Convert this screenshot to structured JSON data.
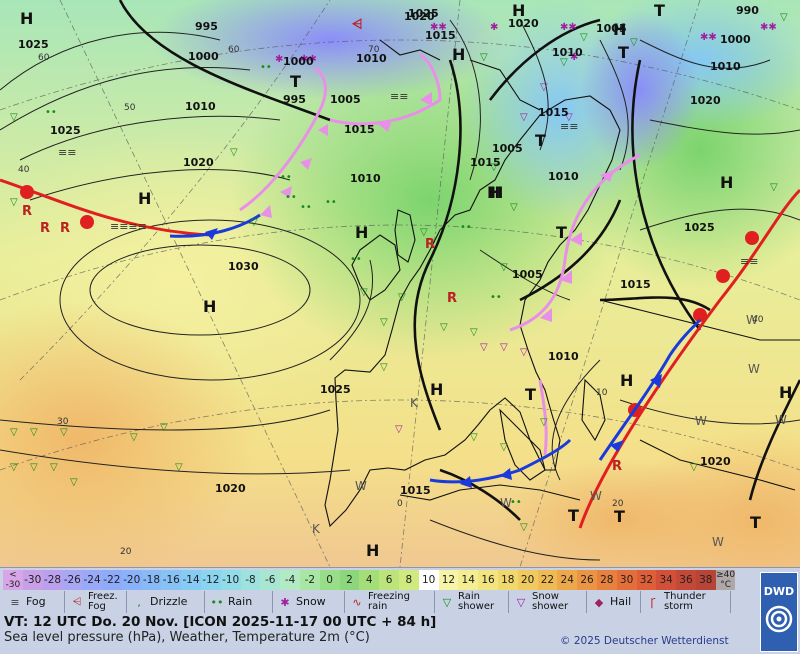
{
  "map": {
    "isobar_labels": [
      "1025",
      "995",
      "1000",
      "1010",
      "1020",
      "1025",
      "1030",
      "1020",
      "995",
      "1000",
      "1005",
      "1010",
      "1015",
      "1020",
      "1025",
      "1015",
      "1010",
      "1015",
      "1005",
      "1010",
      "1005",
      "1025",
      "1010",
      "1010",
      "1015",
      "1025",
      "1020",
      "1015",
      "1005",
      "990",
      "1000",
      "1015",
      "1010",
      "1020",
      "1020"
    ],
    "pressure_centers": [
      "H",
      "T",
      "H",
      "H",
      "H",
      "T",
      "H",
      "T",
      "H",
      "T",
      "H",
      "H",
      "T",
      "H",
      "H",
      "T",
      "H",
      "H",
      "T",
      "T",
      "H",
      "T",
      "H"
    ],
    "weather_codes": [
      "W",
      "W",
      "W",
      "K",
      "K",
      "W",
      "W",
      "W",
      "W",
      "W"
    ],
    "lat_labels": [
      "40",
      "30",
      "20",
      "50",
      "60",
      "60",
      "70",
      "0",
      "10",
      "20",
      "40"
    ]
  },
  "legend": {
    "temp_scale": [
      "<\n-30",
      "-30",
      "-28",
      "-26",
      "-24",
      "-22",
      "-20",
      "-18",
      "-16",
      "-14",
      "-12",
      "-10",
      "-8",
      "-6",
      "-4",
      "-2",
      "0",
      "2",
      "4",
      "6",
      "8",
      "10",
      "12",
      "14",
      "16",
      "18",
      "20",
      "22",
      "24",
      "26",
      "28",
      "30",
      "32",
      "34",
      "36",
      "38",
      "≥40\n°C"
    ],
    "temp_colors": [
      "#d7a6e8",
      "#c7a0e8",
      "#bba0f0",
      "#a9a6f4",
      "#9aa8f8",
      "#8eaaf8",
      "#8ab2fa",
      "#88baf8",
      "#86c2f6",
      "#86cbf4",
      "#8ad4f0",
      "#92dcea",
      "#9ee2e0",
      "#a8e6d2",
      "#b2eac4",
      "#a8e6a4",
      "#98de88",
      "#8cd67c",
      "#a4de78",
      "#bce47a",
      "#d0ea80",
      "#ffffff",
      "#f6f4a8",
      "#f4ee92",
      "#f2e47e",
      "#f0d86c",
      "#f0ca5e",
      "#eeba54",
      "#eca84a",
      "#ea9444",
      "#e8803e",
      "#e46e3a",
      "#de5e38",
      "#d25038",
      "#c44838",
      "#b84438",
      "#b0a8a8"
    ],
    "weather": [
      {
        "label": "Fog",
        "sym": "≡",
        "color": "#444"
      },
      {
        "label": "Freez.\nFog",
        "sym": "⩤",
        "color": "#b22"
      },
      {
        "label": "Drizzle",
        "sym": "‚",
        "color": "#1a8a1a"
      },
      {
        "label": "Rain",
        "sym": "••",
        "color": "#1a8a1a"
      },
      {
        "label": "Snow",
        "sym": "✱",
        "color": "#a020a0"
      },
      {
        "label": "Freezing\nrain",
        "sym": "∿",
        "color": "#b22"
      },
      {
        "label": "Rain\nshower",
        "sym": "▽",
        "color": "#1a8a1a"
      },
      {
        "label": "Snow\nshower",
        "sym": "▽",
        "color": "#a020a0"
      },
      {
        "label": "Hail",
        "sym": "◆",
        "color": "#a02060"
      },
      {
        "label": "Thunder\nstorm",
        "sym": "Ꞅ",
        "color": "#b22"
      }
    ],
    "valid_time": "VT: 12 UTC Do.  20 Nov. [ICON 2025-11-17  00 UTC + 84 h]",
    "description": "Sea level pressure (hPa), Weather, Temperature 2m (°C)",
    "copyright": "© 2025 Deutscher Wetterdienst",
    "logo_text": "DWD"
  }
}
